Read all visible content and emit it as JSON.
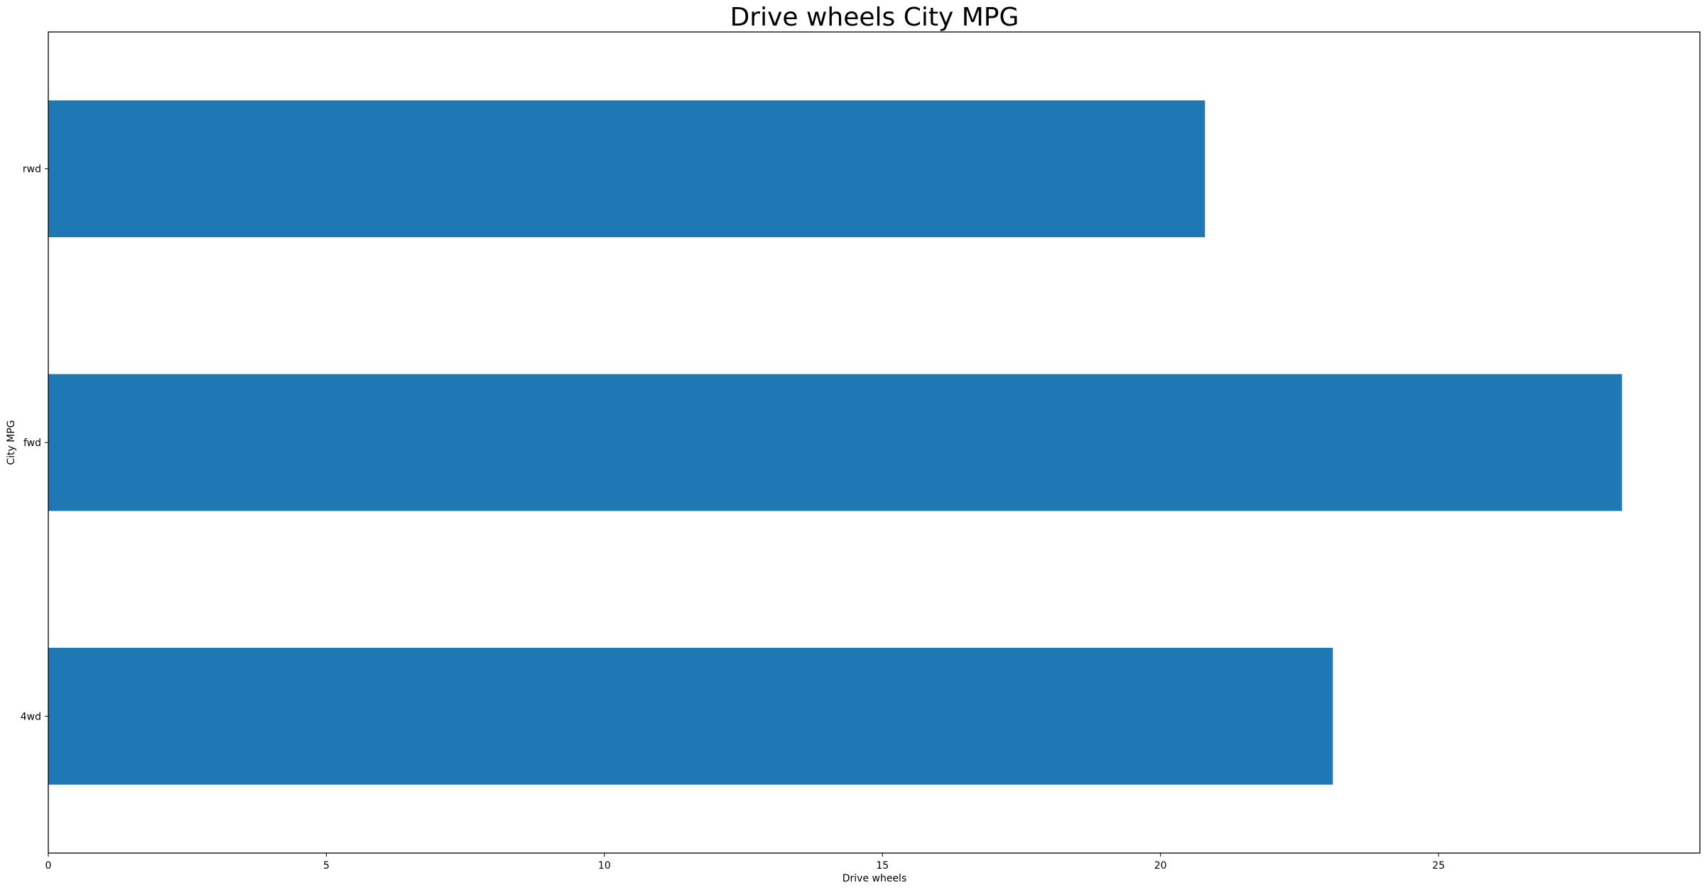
{
  "chart_data": {
    "type": "bar",
    "orientation": "horizontal",
    "title": "Drive wheels City MPG",
    "xlabel": "Drive wheels",
    "ylabel": "City MPG",
    "categories": [
      "4wd",
      "fwd",
      "rwd"
    ],
    "values": [
      23.1,
      28.3,
      20.8
    ],
    "xlim": [
      0,
      29.7
    ],
    "xticks": [
      0,
      5,
      10,
      15,
      20,
      25
    ],
    "bar_color": "#1f77b4",
    "grid": false,
    "legend": "none"
  }
}
